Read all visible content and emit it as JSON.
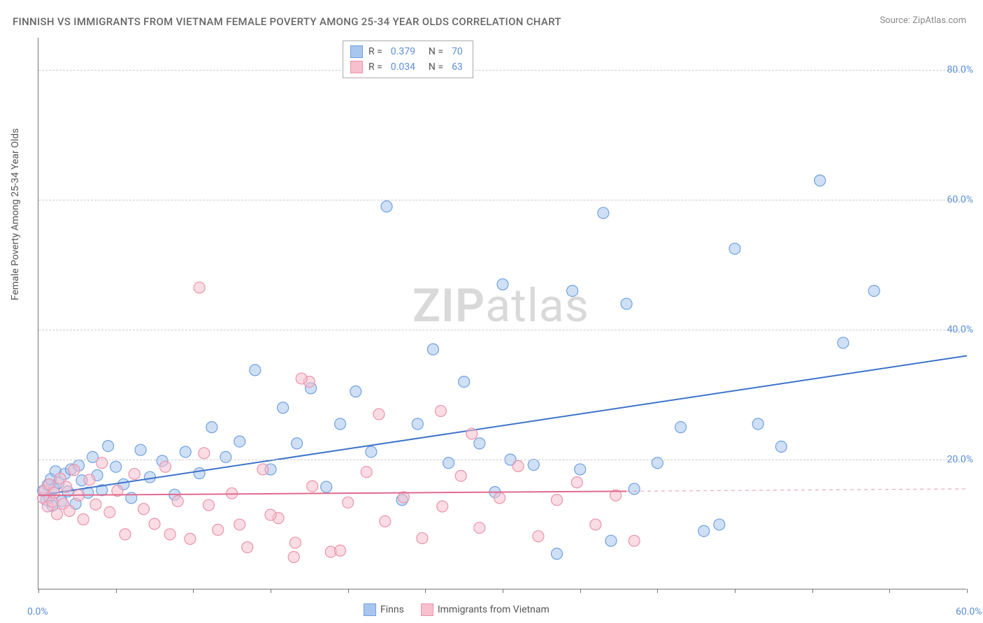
{
  "title": "FINNISH VS IMMIGRANTS FROM VIETNAM FEMALE POVERTY AMONG 25-34 YEAR OLDS CORRELATION CHART",
  "source_label": "Source:",
  "source_value": "ZipAtlas.com",
  "ylabel": "Female Poverty Among 25-34 Year Olds",
  "watermark_a": "ZIP",
  "watermark_b": "atlas",
  "chart": {
    "type": "scatter",
    "xlim": [
      0,
      60
    ],
    "ylim": [
      0,
      85
    ],
    "x_ticks": [
      0,
      5,
      10,
      15,
      20,
      25,
      30,
      35,
      40,
      45,
      50,
      55,
      60
    ],
    "x_tick_labels": {
      "0": "0.0%",
      "60": "60.0%"
    },
    "y_gridlines": [
      20,
      40,
      60,
      80
    ],
    "y_tick_labels": {
      "20": "20.0%",
      "40": "40.0%",
      "60": "60.0%",
      "80": "80.0%"
    },
    "background_color": "#ffffff",
    "grid_color": "#cccccc",
    "axis_color": "#777777",
    "tick_label_color": "#5b8fd6",
    "marker_radius": 8,
    "marker_opacity": 0.55,
    "line_width": 2,
    "series": [
      {
        "name": "Finns",
        "fill": "#a8c6ef",
        "stroke": "#6fa0e0",
        "line_color": "#3d73c9",
        "r": 0.379,
        "n": 70,
        "regression": {
          "x1": 0,
          "y1": 14.5,
          "x2": 60,
          "y2": 36.0,
          "solid_to_x": 60
        },
        "points": [
          [
            0.3,
            15.2
          ],
          [
            0.5,
            13.8
          ],
          [
            0.6,
            16.1
          ],
          [
            0.7,
            14.2
          ],
          [
            0.8,
            17.0
          ],
          [
            0.9,
            12.9
          ],
          [
            1.0,
            15.5
          ],
          [
            1.1,
            18.2
          ],
          [
            1.3,
            16.4
          ],
          [
            1.5,
            13.6
          ],
          [
            1.7,
            17.8
          ],
          [
            1.9,
            15.1
          ],
          [
            2.1,
            18.5
          ],
          [
            2.4,
            13.2
          ],
          [
            2.6,
            19.1
          ],
          [
            2.8,
            16.8
          ],
          [
            3.2,
            14.9
          ],
          [
            3.5,
            20.4
          ],
          [
            3.8,
            17.6
          ],
          [
            4.1,
            15.3
          ],
          [
            4.5,
            22.1
          ],
          [
            5.0,
            18.9
          ],
          [
            5.5,
            16.2
          ],
          [
            6.0,
            14.1
          ],
          [
            6.6,
            21.5
          ],
          [
            7.2,
            17.3
          ],
          [
            8.0,
            19.8
          ],
          [
            8.8,
            14.6
          ],
          [
            9.5,
            21.2
          ],
          [
            10.4,
            17.9
          ],
          [
            11.2,
            25.0
          ],
          [
            12.1,
            20.4
          ],
          [
            13.0,
            22.8
          ],
          [
            14.0,
            33.8
          ],
          [
            15.0,
            18.5
          ],
          [
            15.8,
            28.0
          ],
          [
            16.7,
            22.5
          ],
          [
            17.6,
            31.0
          ],
          [
            18.6,
            15.8
          ],
          [
            19.5,
            25.5
          ],
          [
            20.5,
            30.5
          ],
          [
            21.5,
            21.2
          ],
          [
            22.5,
            59.0
          ],
          [
            23.5,
            13.8
          ],
          [
            24.5,
            25.5
          ],
          [
            25.5,
            37.0
          ],
          [
            26.5,
            19.5
          ],
          [
            27.5,
            32.0
          ],
          [
            28.5,
            22.5
          ],
          [
            29.5,
            15.0
          ],
          [
            30.5,
            20.0
          ],
          [
            32.0,
            19.2
          ],
          [
            33.5,
            5.5
          ],
          [
            35.0,
            18.5
          ],
          [
            36.5,
            58.0
          ],
          [
            37.0,
            7.5
          ],
          [
            38.5,
            15.5
          ],
          [
            40.0,
            19.5
          ],
          [
            41.5,
            25.0
          ],
          [
            43.0,
            9.0
          ],
          [
            44.0,
            10.0
          ],
          [
            45.0,
            52.5
          ],
          [
            46.5,
            25.5
          ],
          [
            48.0,
            22.0
          ],
          [
            50.5,
            63.0
          ],
          [
            52.0,
            38.0
          ],
          [
            54.0,
            46.0
          ],
          [
            38.0,
            44.0
          ],
          [
            34.5,
            46.0
          ],
          [
            30.0,
            47.0
          ]
        ]
      },
      {
        "name": "Immigrants from Vietnam",
        "fill": "#f6c0ce",
        "stroke": "#ea93ab",
        "line_color": "#e06a8f",
        "r": 0.034,
        "n": 63,
        "regression": {
          "x1": 0,
          "y1": 14.5,
          "x2": 60,
          "y2": 15.5,
          "solid_to_x": 38
        },
        "points": [
          [
            0.3,
            14.1
          ],
          [
            0.4,
            15.3
          ],
          [
            0.6,
            12.8
          ],
          [
            0.7,
            16.2
          ],
          [
            0.9,
            13.5
          ],
          [
            1.0,
            14.9
          ],
          [
            1.2,
            11.6
          ],
          [
            1.4,
            17.1
          ],
          [
            1.6,
            13.2
          ],
          [
            1.8,
            15.8
          ],
          [
            2.0,
            12.1
          ],
          [
            2.3,
            18.4
          ],
          [
            2.6,
            14.5
          ],
          [
            2.9,
            10.8
          ],
          [
            3.3,
            16.9
          ],
          [
            3.7,
            13.1
          ],
          [
            4.1,
            19.5
          ],
          [
            4.6,
            11.9
          ],
          [
            5.1,
            15.2
          ],
          [
            5.6,
            8.5
          ],
          [
            6.2,
            17.8
          ],
          [
            6.8,
            12.4
          ],
          [
            7.5,
            10.1
          ],
          [
            8.2,
            18.9
          ],
          [
            9.0,
            13.6
          ],
          [
            9.8,
            7.8
          ],
          [
            10.4,
            46.5
          ],
          [
            10.7,
            21.0
          ],
          [
            11.6,
            9.2
          ],
          [
            12.5,
            14.8
          ],
          [
            13.5,
            6.5
          ],
          [
            14.5,
            18.5
          ],
          [
            15.5,
            11.0
          ],
          [
            16.6,
            7.2
          ],
          [
            17.5,
            32.0
          ],
          [
            17.7,
            15.9
          ],
          [
            18.9,
            5.8
          ],
          [
            20.0,
            13.4
          ],
          [
            21.2,
            18.1
          ],
          [
            22.4,
            10.5
          ],
          [
            23.6,
            14.2
          ],
          [
            24.8,
            7.9
          ],
          [
            26.0,
            27.5
          ],
          [
            26.1,
            12.8
          ],
          [
            27.3,
            17.5
          ],
          [
            28.5,
            9.5
          ],
          [
            29.8,
            14.1
          ],
          [
            31.0,
            19.0
          ],
          [
            32.3,
            8.2
          ],
          [
            33.5,
            13.8
          ],
          [
            34.8,
            16.5
          ],
          [
            36.0,
            10.0
          ],
          [
            37.3,
            14.5
          ],
          [
            38.5,
            7.5
          ],
          [
            17.0,
            32.5
          ],
          [
            28.0,
            24.0
          ],
          [
            22.0,
            27.0
          ],
          [
            16.5,
            5.0
          ],
          [
            19.5,
            6.0
          ],
          [
            15.0,
            11.5
          ],
          [
            13.0,
            10.0
          ],
          [
            11.0,
            13.0
          ],
          [
            8.5,
            8.5
          ]
        ]
      }
    ]
  },
  "legend_bottom": [
    {
      "label": "Finns",
      "fill": "#a8c6ef",
      "stroke": "#6fa0e0"
    },
    {
      "label": "Immigrants from Vietnam",
      "fill": "#f6c0ce",
      "stroke": "#ea93ab"
    }
  ]
}
